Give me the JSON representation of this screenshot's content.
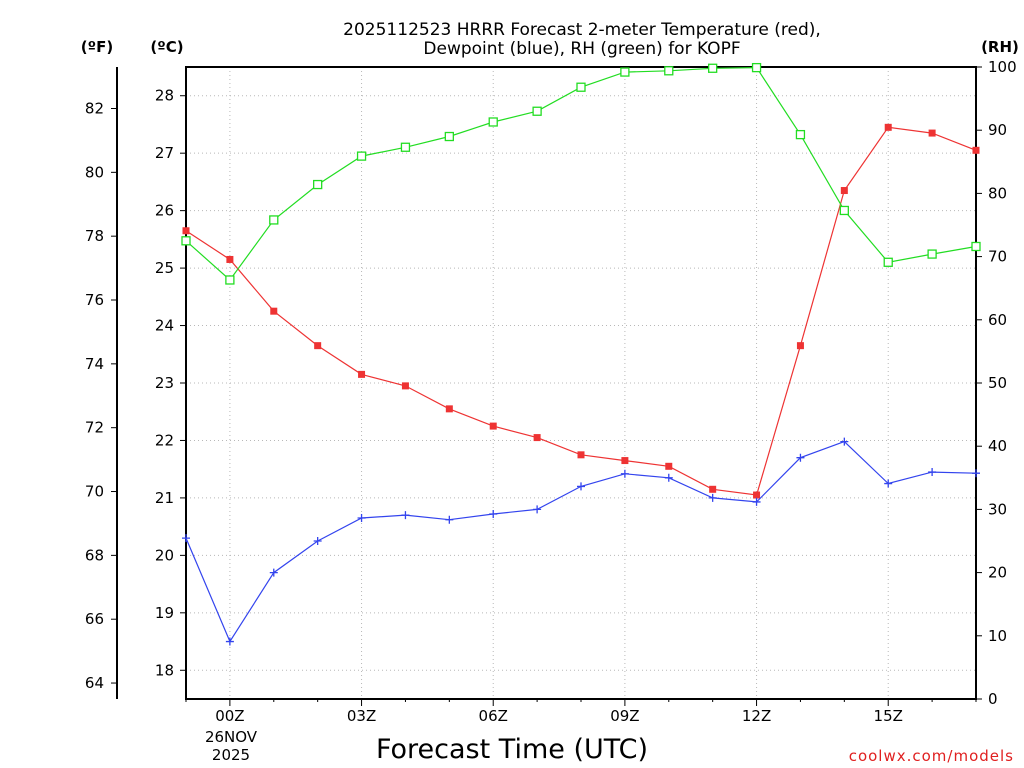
{
  "chart_data": {
    "type": "line",
    "title": "2025112523 HRRR Forecast 2-meter Temperature (red),",
    "subtitle": "Dewpoint (blue), RH (green) for KOPF",
    "xlabel": "Forecast Time (UTC)",
    "credit": "coolwx.com/models",
    "units": {
      "fahrenheit": "(ºF)",
      "celsius": "(ºC)",
      "rh": "(RH)"
    },
    "x_ticks": [
      {
        "x": 0,
        "label": "00Z"
      },
      {
        "x": 3,
        "label": "03Z"
      },
      {
        "x": 6,
        "label": "06Z"
      },
      {
        "x": 9,
        "label": "09Z"
      },
      {
        "x": 12,
        "label": "12Z"
      },
      {
        "x": 15,
        "label": "15Z"
      }
    ],
    "date_label": [
      "26NOV",
      "2025"
    ],
    "xlim": [
      -1,
      17
    ],
    "celsius_ylim": [
      17.5,
      28.5
    ],
    "celsius_ticks": [
      18,
      19,
      20,
      21,
      22,
      23,
      24,
      25,
      26,
      27,
      28
    ],
    "fahrenheit_ticks": [
      64,
      66,
      68,
      70,
      72,
      74,
      76,
      78,
      80,
      82
    ],
    "rh_ylim": [
      0,
      100
    ],
    "rh_ticks": [
      0,
      10,
      20,
      30,
      40,
      50,
      60,
      70,
      80,
      90,
      100
    ],
    "grid": true,
    "series": [
      {
        "name": "2-meter Temperature",
        "axis": "celsius",
        "color": "#ee3333",
        "marker": "filled-square",
        "x": [
          -1,
          0,
          1,
          2,
          3,
          4,
          5,
          6,
          7,
          8,
          9,
          10,
          11,
          12,
          13,
          14,
          15,
          16,
          17
        ],
        "values": [
          25.65,
          25.15,
          24.25,
          23.65,
          23.15,
          22.95,
          22.55,
          22.25,
          22.05,
          21.75,
          21.65,
          21.55,
          21.15,
          21.05,
          23.65,
          26.35,
          27.45,
          27.35,
          27.05
        ]
      },
      {
        "name": "Dewpoint",
        "axis": "celsius",
        "color": "#3344ee",
        "marker": "plus",
        "x": [
          -1,
          0,
          1,
          2,
          3,
          4,
          5,
          6,
          7,
          8,
          9,
          10,
          11,
          12,
          13,
          14,
          15,
          16,
          17
        ],
        "values": [
          20.3,
          18.5,
          19.7,
          20.25,
          20.65,
          20.7,
          20.62,
          20.72,
          20.8,
          21.2,
          21.42,
          21.35,
          21.0,
          20.93,
          21.7,
          21.98,
          21.25,
          21.45,
          21.43
        ]
      },
      {
        "name": "RH",
        "axis": "rh",
        "color": "#22dd22",
        "marker": "open-square",
        "x": [
          -1,
          0,
          1,
          2,
          3,
          4,
          5,
          6,
          7,
          8,
          9,
          10,
          11,
          12,
          13,
          14,
          15,
          16,
          17
        ],
        "values": [
          72.5,
          66.3,
          75.8,
          81.4,
          85.9,
          87.3,
          89.0,
          91.3,
          93.0,
          96.8,
          99.2,
          99.4,
          99.8,
          99.9,
          89.3,
          77.3,
          69.1,
          70.4,
          71.6
        ]
      }
    ]
  }
}
